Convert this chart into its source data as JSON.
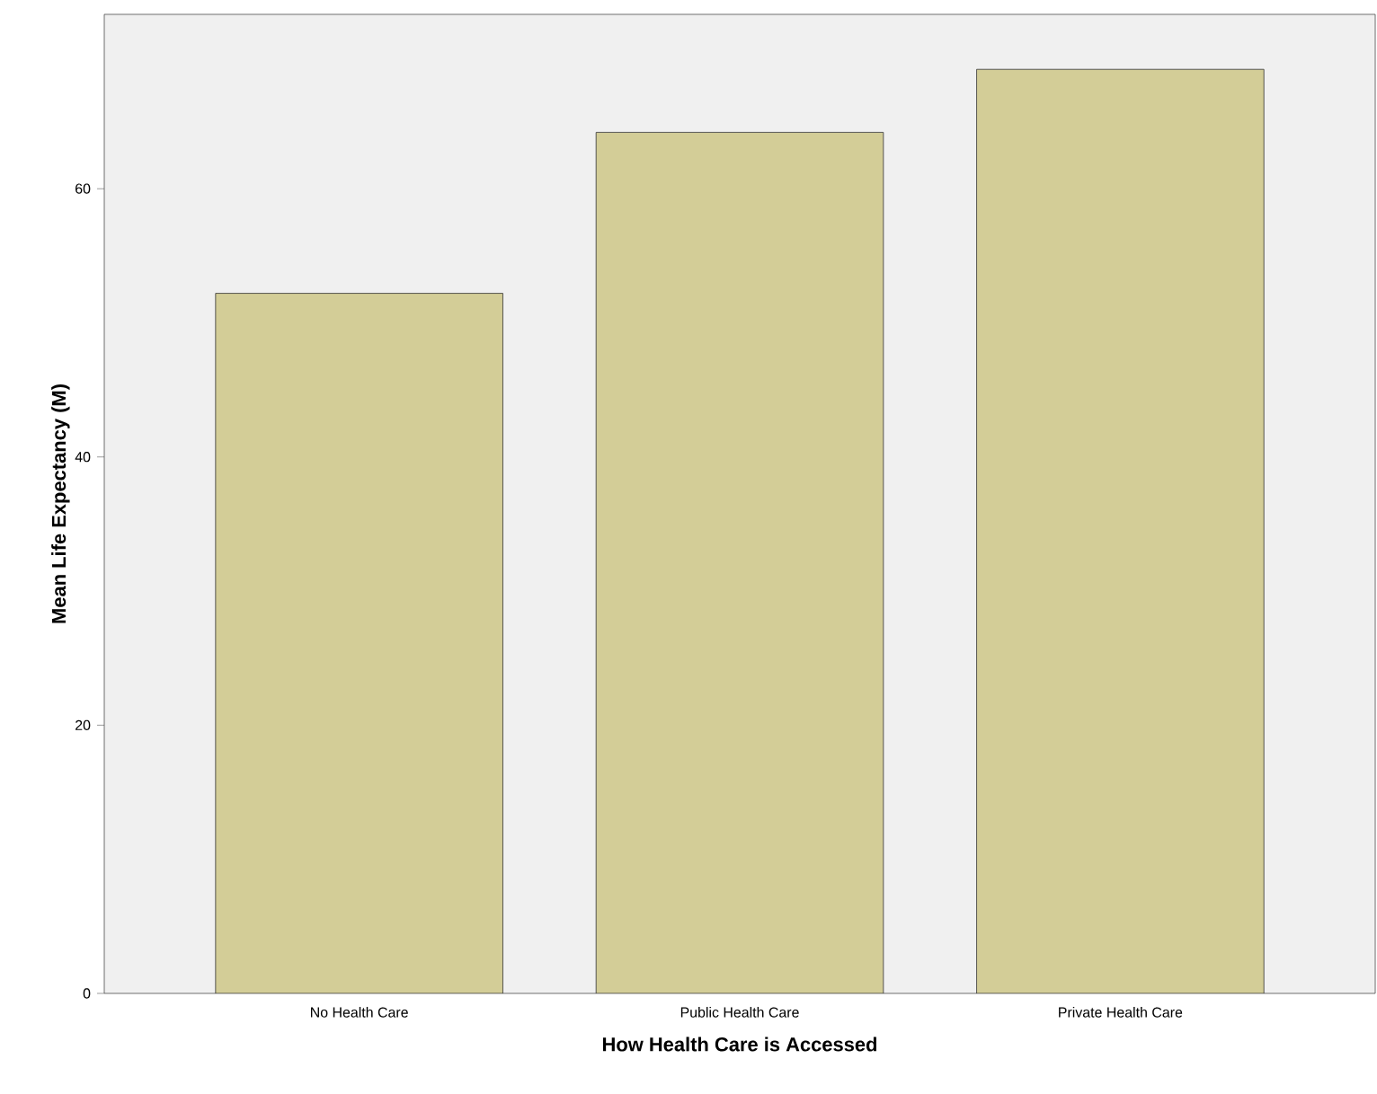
{
  "chart_data": {
    "type": "bar",
    "xlabel": "How Health Care is Accessed",
    "ylabel": "Mean Life Expectancy (M)",
    "categories": [
      "No Health Care",
      "Public Health Care",
      "Private Health Care"
    ],
    "values": [
      52.2,
      64.2,
      68.9
    ],
    "color": "#d3cd97",
    "ylim": [
      0,
      73
    ],
    "yticks": [
      0,
      20,
      40,
      60
    ],
    "grid": false
  }
}
